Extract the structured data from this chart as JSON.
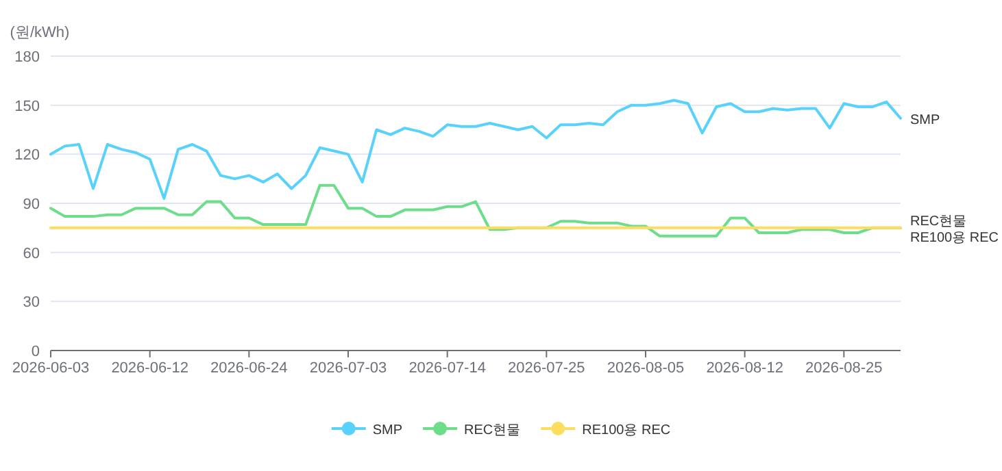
{
  "chart_data": {
    "type": "line",
    "ylabel": "(원/kWh)",
    "categories": [
      "2026-06-03",
      null,
      null,
      null,
      null,
      null,
      null,
      "2026-06-12",
      null,
      null,
      null,
      null,
      null,
      null,
      "2026-06-24",
      null,
      null,
      null,
      null,
      null,
      null,
      "2026-07-03",
      null,
      null,
      null,
      null,
      null,
      null,
      "2026-07-14",
      null,
      null,
      null,
      null,
      null,
      null,
      "2026-07-25",
      null,
      null,
      null,
      null,
      null,
      null,
      "2026-08-05",
      null,
      null,
      null,
      null,
      null,
      null,
      "2026-08-12",
      null,
      null,
      null,
      null,
      null,
      null,
      "2026-08-25",
      null,
      null,
      null,
      null
    ],
    "series": [
      {
        "name": "SMP",
        "color": "#58d2fb",
        "values": [
          120,
          125,
          126,
          99,
          126,
          123,
          121,
          117,
          93,
          123,
          126,
          122,
          107,
          105,
          107,
          103,
          108,
          99,
          107,
          124,
          122,
          120,
          103,
          135,
          132,
          136,
          134,
          131,
          138,
          137,
          137,
          139,
          137,
          135,
          137,
          130,
          138,
          138,
          139,
          138,
          146,
          150,
          150,
          151,
          153,
          151,
          133,
          149,
          151,
          146,
          146,
          148,
          147,
          148,
          148,
          136,
          151,
          149,
          149,
          152,
          142
        ]
      },
      {
        "name": "REC현물",
        "color": "#6ddc8b",
        "values": [
          87,
          82,
          82,
          82,
          83,
          83,
          87,
          87,
          87,
          83,
          83,
          91,
          91,
          81,
          81,
          77,
          77,
          77,
          77,
          101,
          101,
          87,
          87,
          82,
          82,
          86,
          86,
          86,
          88,
          88,
          91,
          74,
          74,
          75,
          75,
          75,
          79,
          79,
          78,
          78,
          78,
          76,
          76,
          70,
          70,
          70,
          70,
          70,
          81,
          81,
          72,
          72,
          72,
          74,
          74,
          74,
          72,
          72,
          75,
          75,
          75
        ]
      },
      {
        "name": "RE100용 REC",
        "color": "#fddd60",
        "values": [
          75,
          75,
          75,
          75,
          75,
          75,
          75,
          75,
          75,
          75,
          75,
          75,
          75,
          75,
          75,
          75,
          75,
          75,
          75,
          75,
          75,
          75,
          75,
          75,
          75,
          75,
          75,
          75,
          75,
          75,
          75,
          75,
          75,
          75,
          75,
          75,
          75,
          75,
          75,
          75,
          75,
          75,
          75,
          75,
          75,
          75,
          75,
          75,
          75,
          75,
          75,
          75,
          75,
          75,
          75,
          75,
          75,
          75,
          75,
          75,
          75
        ]
      }
    ],
    "ylim": [
      0,
      180
    ],
    "yticks": [
      0,
      30,
      60,
      90,
      120,
      150,
      180
    ],
    "grid": "y",
    "legend": "bottom",
    "marker": "none",
    "line_style": "solid"
  }
}
